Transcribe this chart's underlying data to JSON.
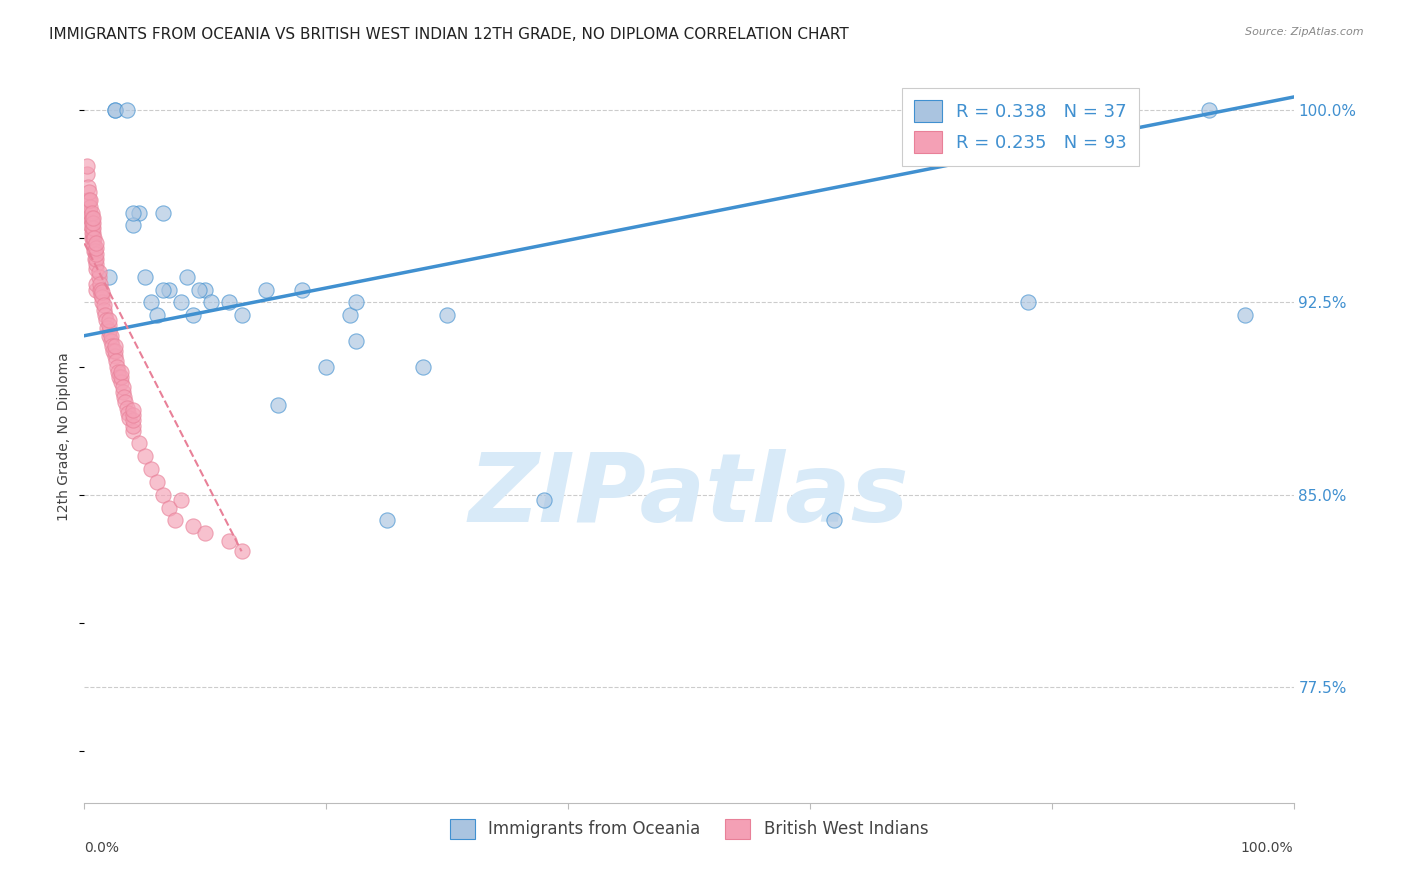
{
  "title": "IMMIGRANTS FROM OCEANIA VS BRITISH WEST INDIAN 12TH GRADE, NO DIPLOMA CORRELATION CHART",
  "source": "Source: ZipAtlas.com",
  "ylabel": "12th Grade, No Diploma",
  "ytick_vals": [
    100.0,
    92.5,
    85.0,
    77.5
  ],
  "ytick_labels": [
    "100.0%",
    "92.5%",
    "85.0%",
    "77.5%"
  ],
  "xtick_vals": [
    0,
    20,
    40,
    60,
    80,
    100
  ],
  "xmin": 0.0,
  "xmax": 100.0,
  "ymin": 73.0,
  "ymax": 101.5,
  "legend_blue_R": "R = 0.338",
  "legend_blue_N": "N = 37",
  "legend_pink_R": "R = 0.235",
  "legend_pink_N": "N = 93",
  "blue_color": "#aac4e0",
  "pink_color": "#f4a0b5",
  "line_color": "#4090d0",
  "pink_line_color": "#e88098",
  "watermark_text": "ZIPatlas",
  "blue_scatter_x": [
    2.0,
    2.5,
    2.5,
    3.5,
    4.5,
    5.0,
    5.5,
    6.0,
    6.5,
    7.0,
    8.0,
    8.5,
    9.0,
    10.0,
    10.5,
    12.0,
    13.0,
    15.0,
    16.0,
    18.0,
    20.0,
    22.0,
    22.5,
    22.5,
    25.0,
    28.0,
    30.0,
    38.0,
    62.0,
    75.0,
    78.0,
    93.0,
    96.0,
    4.0,
    4.0,
    6.5,
    9.5
  ],
  "blue_scatter_y": [
    93.5,
    100.0,
    100.0,
    100.0,
    96.0,
    93.5,
    92.5,
    92.0,
    96.0,
    93.0,
    92.5,
    93.5,
    92.0,
    93.0,
    92.5,
    92.5,
    92.0,
    93.0,
    88.5,
    93.0,
    90.0,
    92.0,
    91.0,
    92.5,
    84.0,
    90.0,
    92.0,
    84.8,
    84.0,
    99.5,
    92.5,
    100.0,
    92.0,
    95.5,
    96.0,
    93.0,
    93.0
  ],
  "pink_scatter_x": [
    0.2,
    0.2,
    0.3,
    0.3,
    0.4,
    0.4,
    0.4,
    0.5,
    0.5,
    0.5,
    0.5,
    0.5,
    0.6,
    0.6,
    0.6,
    0.6,
    0.6,
    0.6,
    0.7,
    0.7,
    0.7,
    0.7,
    0.7,
    0.7,
    0.8,
    0.8,
    0.8,
    0.9,
    0.9,
    1.0,
    1.0,
    1.0,
    1.0,
    1.0,
    1.0,
    1.0,
    1.0,
    1.2,
    1.2,
    1.3,
    1.3,
    1.4,
    1.4,
    1.5,
    1.5,
    1.5,
    1.6,
    1.6,
    1.7,
    1.8,
    1.9,
    2.0,
    2.0,
    2.0,
    2.0,
    2.2,
    2.2,
    2.3,
    2.4,
    2.5,
    2.5,
    2.5,
    2.6,
    2.7,
    2.8,
    2.9,
    3.0,
    3.0,
    3.0,
    3.2,
    3.2,
    3.3,
    3.4,
    3.5,
    3.6,
    3.7,
    4.0,
    4.0,
    4.0,
    4.0,
    4.0,
    4.5,
    5.0,
    5.5,
    6.0,
    6.5,
    7.0,
    7.5,
    8.0,
    9.0,
    10.0,
    12.0,
    13.0
  ],
  "pink_scatter_y": [
    97.5,
    97.8,
    97.0,
    96.5,
    96.0,
    96.5,
    96.8,
    95.5,
    95.8,
    96.0,
    96.2,
    96.5,
    95.0,
    95.2,
    95.4,
    95.6,
    95.8,
    96.0,
    94.8,
    95.0,
    95.2,
    95.4,
    95.6,
    95.8,
    94.5,
    94.7,
    95.0,
    94.2,
    94.5,
    93.8,
    94.0,
    94.2,
    94.4,
    94.6,
    94.8,
    93.0,
    93.2,
    93.5,
    93.7,
    93.0,
    93.2,
    92.8,
    93.0,
    92.5,
    92.7,
    92.9,
    92.2,
    92.4,
    92.0,
    91.8,
    91.5,
    91.2,
    91.4,
    91.6,
    91.8,
    91.0,
    91.2,
    90.8,
    90.6,
    90.4,
    90.6,
    90.8,
    90.2,
    90.0,
    89.8,
    89.6,
    89.4,
    89.6,
    89.8,
    89.0,
    89.2,
    88.8,
    88.6,
    88.4,
    88.2,
    88.0,
    87.5,
    87.7,
    87.9,
    88.1,
    88.3,
    87.0,
    86.5,
    86.0,
    85.5,
    85.0,
    84.5,
    84.0,
    84.8,
    83.8,
    83.5,
    83.2,
    82.8
  ],
  "blue_line_x": [
    0.0,
    100.0
  ],
  "blue_line_y": [
    91.2,
    100.5
  ],
  "pink_line_x": [
    0.0,
    13.0
  ],
  "pink_line_y": [
    94.8,
    82.8
  ],
  "background_color": "#ffffff",
  "grid_color": "#cccccc",
  "title_fontsize": 11,
  "axis_label_fontsize": 10,
  "legend_fontsize": 13,
  "watermark_color": "#d8eaf8",
  "watermark_fontsize": 70,
  "scatter_size": 120,
  "scatter_alpha": 0.65
}
